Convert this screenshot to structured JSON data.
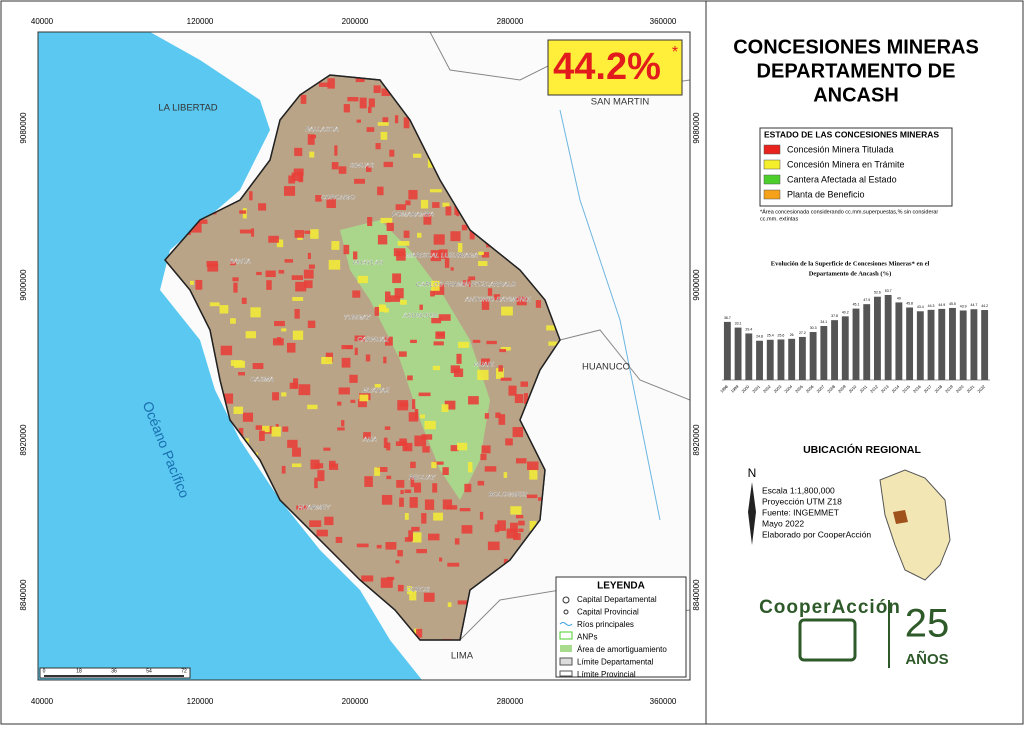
{
  "stat": "44.2%",
  "stat_mark": "*",
  "map": {
    "xticks": [
      "40000",
      "120000",
      "200000",
      "280000",
      "360000"
    ],
    "yticks": [
      "9080000",
      "9000000",
      "8920000",
      "8840000"
    ],
    "regions": [
      "LA LIBERTAD",
      "SAN MARTIN",
      "HUANUCO",
      "LIMA"
    ],
    "ocean": "Océano Pacífico",
    "provinces": [
      "PALLASCA",
      "SIHUAS",
      "CORONGO",
      "POMABAMBA",
      "MARISCAL LUZURIAGA",
      "HUAYLAS",
      "SANTA",
      "CARLOS FERMIN FITZCARRALD",
      "ANTONIO RAYMONDI",
      "YUNGAY",
      "ASUNCION",
      "CARHUAZ",
      "HUARI",
      "CASMA",
      "HUARAZ",
      "AIJA",
      "RECUAY",
      "BOLOGNESI",
      "HUARMEY",
      "OCROS"
    ],
    "scale_ticks": [
      "0",
      "18",
      "36",
      "54",
      "72"
    ]
  },
  "legend": {
    "title": "LEYENDA",
    "items": [
      "Capital Departamental",
      "Capital Provincial",
      "Ríos principales",
      "ANPs",
      "Área de amortiguamiento",
      "Límite Departamental",
      "Límite Provincial"
    ]
  },
  "title": [
    "CONCESIONES MINERAS",
    "DEPARTAMENTO DE",
    "ANCASH"
  ],
  "status": {
    "title": "ESTADO DE LAS CONCESIONES MINERAS",
    "items": [
      {
        "name": "Concesión Minera Titulada",
        "color": "#e8221c"
      },
      {
        "name": "Concesión Minera en Trámite",
        "color": "#f5ee2a"
      },
      {
        "name": "Cantera Afectada al Estado",
        "color": "#4ccf2b"
      },
      {
        "name": "Planta de Beneficio",
        "color": "#f5a11a"
      }
    ],
    "note": [
      "*Área concesionada considerando cc.mm.superpuestas,% sin considerar",
      "cc.mm. extintas"
    ]
  },
  "chart_data": {
    "type": "bar",
    "title": [
      "Evolución de la Superficie de Concesiones Mineras* en el",
      "Departamento de Ancash (%)"
    ],
    "categories": [
      "1998",
      "1999",
      "2000",
      "2001",
      "2002",
      "2003",
      "2004",
      "2005",
      "2006",
      "2007",
      "2008",
      "2009",
      "2010",
      "2011",
      "2012",
      "2013",
      "2014",
      "2015",
      "2016",
      "2017",
      "2018",
      "2019",
      "2020",
      "2021",
      "2022"
    ],
    "values": [
      36.7,
      33.1,
      29.4,
      24.8,
      25.4,
      25.6,
      26.0,
      27.2,
      30.3,
      34.1,
      37.8,
      40.2,
      45.1,
      47.9,
      52.6,
      53.7,
      49.0,
      45.8,
      43.4,
      44.3,
      44.9,
      45.5,
      43.9,
      44.7,
      44.2
    ],
    "color": "#555555",
    "ylim": [
      0,
      60
    ]
  },
  "regional": "UBICACIÓN REGIONAL",
  "north": "N",
  "info": [
    "Escala 1:1,800,000",
    "Proyección UTM Z18",
    "Fuente: INGEMMET",
    "Mayo 2022",
    "Elaborado por CooperAcción"
  ],
  "logo": {
    "name": "CooperAcción",
    "years": "25",
    "label": "AÑOS"
  }
}
